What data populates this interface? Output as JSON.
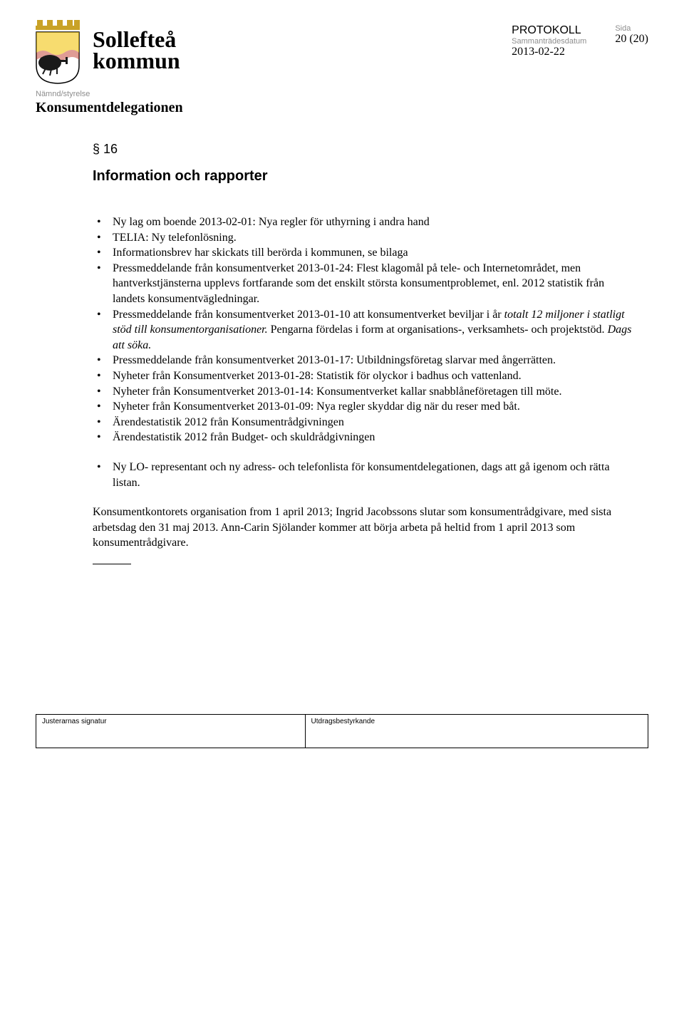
{
  "header": {
    "org_line1": "Sollefteå",
    "org_line2": "kommun",
    "protokoll": "PROTOKOLL",
    "samm_label": "Sammanträdesdatum",
    "date": "2013-02-22",
    "sida_label": "Sida",
    "page": "20 (20)",
    "board_label": "Nämnd/styrelse",
    "board_name": "Konsumentdelegationen",
    "crest_colors": {
      "shield_red": "#c0392b",
      "shield_yellow": "#f1c40f",
      "shield_black": "#1a1a1a",
      "border": "#000000"
    }
  },
  "content": {
    "section_no": "§ 16",
    "section_title": "Information och rapporter",
    "bullets1": [
      "Ny lag om boende 2013-02-01: Nya regler för uthyrning i andra hand",
      "TELIA: Ny telefonlösning.",
      "Informationsbrev har skickats till berörda i kommunen, se bilaga",
      "Pressmeddelande från konsumentverket 2013-01-24: Flest klagomål på tele- och Internetområdet, men hantverkstjänsterna upplevs fortfarande som det enskilt största konsumentproblemet, enl. 2012 statistik från landets konsumentvägledningar."
    ],
    "bullet_mixed": {
      "pre": "Pressmeddelande från konsumentverket 2013-01-10 att konsumentverket beviljar i år ",
      "ital": "totalt 12 miljoner i statligt stöd till konsumentorganisationer.",
      "post1": " Pengarna fördelas i form at organisations-, verksamhets- och projektstöd. ",
      "ital2": "Dags att söka.",
      "post2": ""
    },
    "bullets2": [
      "Pressmeddelande från konsumentverket 2013-01-17: Utbildningsföretag slarvar med ångerrätten.",
      "Nyheter från Konsumentverket 2013-01-28: Statistik för olyckor i badhus och vattenland.",
      "Nyheter från Konsumentverket 2013-01-14: Konsumentverket kallar snabblåneföretagen till möte.",
      "Nyheter från Konsumentverket 2013-01-09: Nya regler skyddar dig när du reser med båt.",
      "Ärendestatistik 2012 från Konsumentrådgivningen",
      "Ärendestatistik 2012 från Budget- och skuldrådgivningen"
    ],
    "bullets3": [
      "Ny LO- representant och ny adress- och telefonlista för konsumentdelegationen, dags att gå igenom och rätta listan."
    ],
    "closing": "Konsumentkontorets organisation from 1 april 2013; Ingrid Jacobssons slutar som konsumentrådgivare, med sista arbetsdag den 31 maj 2013. Ann-Carin Sjölander kommer att börja arbeta på heltid from 1 april 2013 som konsumentrådgivare."
  },
  "footer": {
    "left": "Justerarnas signatur",
    "right": "Utdragsbestyrkande"
  }
}
